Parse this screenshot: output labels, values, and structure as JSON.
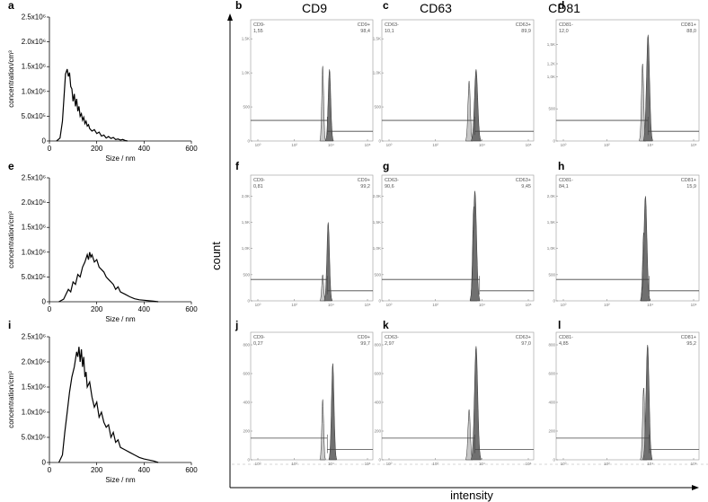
{
  "column_headers": [
    "CD9",
    "CD63",
    "CD81"
  ],
  "axis_labels": {
    "count": "count",
    "intensity": "intensity"
  },
  "chart_data": [
    {
      "panel": "a",
      "type": "line",
      "xlabel": "Size / nm",
      "ylabel": "concentration/cm³",
      "xlim": [
        0,
        600
      ],
      "ylim": [
        0,
        2500000
      ],
      "xticks": [
        "0",
        "200",
        "400",
        "600"
      ],
      "yticks": [
        "0",
        "5.0x10⁵",
        "1.0x10⁶",
        "1.5x10⁶",
        "2.0x10⁶",
        "2.5x10⁶"
      ],
      "x": [
        30,
        45,
        55,
        62,
        68,
        75,
        80,
        85,
        90,
        95,
        100,
        105,
        110,
        115,
        120,
        125,
        130,
        135,
        140,
        145,
        150,
        155,
        160,
        165,
        170,
        180,
        190,
        200,
        210,
        220,
        230,
        240,
        250,
        260,
        270,
        280,
        290,
        300,
        310,
        320,
        330
      ],
      "y": [
        0,
        60000,
        400000,
        900000,
        1350000,
        1450000,
        1300000,
        1380000,
        1100000,
        1050000,
        800000,
        950000,
        700000,
        850000,
        600000,
        700000,
        500000,
        550000,
        420000,
        480000,
        350000,
        400000,
        300000,
        330000,
        250000,
        200000,
        230000,
        150000,
        180000,
        100000,
        120000,
        60000,
        90000,
        50000,
        70000,
        30000,
        40000,
        20000,
        30000,
        10000,
        0
      ]
    },
    {
      "panel": "e",
      "type": "line",
      "xlabel": "Size / nm",
      "ylabel": "concentration/cm³",
      "xlim": [
        0,
        600
      ],
      "ylim": [
        0,
        2500000
      ],
      "xticks": [
        "0",
        "200",
        "400",
        "600"
      ],
      "yticks": [
        "0",
        "5.0x10⁵",
        "1.0x10⁶",
        "1.5x10⁶",
        "2.0x10⁶",
        "2.5x10⁶"
      ],
      "x": [
        40,
        60,
        70,
        80,
        90,
        100,
        110,
        120,
        130,
        140,
        150,
        160,
        165,
        170,
        175,
        180,
        190,
        200,
        210,
        220,
        230,
        240,
        250,
        260,
        270,
        280,
        290,
        300,
        320,
        340,
        360,
        380,
        400,
        420,
        440,
        460
      ],
      "y": [
        0,
        50000,
        150000,
        250000,
        200000,
        400000,
        350000,
        550000,
        500000,
        700000,
        800000,
        950000,
        850000,
        1000000,
        900000,
        950000,
        800000,
        850000,
        700000,
        650000,
        600000,
        500000,
        450000,
        400000,
        350000,
        250000,
        300000,
        200000,
        150000,
        100000,
        60000,
        40000,
        30000,
        20000,
        10000,
        0
      ]
    },
    {
      "panel": "i",
      "type": "line",
      "xlabel": "Size / nm",
      "ylabel": "concentration/cm³",
      "xlim": [
        0,
        600
      ],
      "ylim": [
        0,
        2500000
      ],
      "xticks": [
        "0",
        "200",
        "400",
        "600"
      ],
      "yticks": [
        "0",
        "5.0x10⁵",
        "1.0x10⁶",
        "1.5x10⁶",
        "2.0x10⁶",
        "2.5x10⁶"
      ],
      "x": [
        40,
        55,
        65,
        75,
        85,
        95,
        105,
        115,
        120,
        125,
        130,
        135,
        140,
        145,
        150,
        155,
        160,
        170,
        180,
        190,
        200,
        210,
        220,
        230,
        240,
        250,
        260,
        270,
        280,
        290,
        300,
        320,
        340,
        360,
        380,
        400,
        420,
        440,
        460
      ],
      "y": [
        0,
        150000,
        600000,
        1000000,
        1400000,
        1700000,
        1900000,
        2200000,
        2100000,
        2300000,
        2000000,
        2250000,
        1900000,
        2100000,
        1700000,
        1800000,
        1500000,
        1600000,
        1300000,
        1100000,
        1200000,
        900000,
        1000000,
        800000,
        700000,
        750000,
        500000,
        600000,
        400000,
        450000,
        300000,
        250000,
        200000,
        150000,
        100000,
        70000,
        50000,
        30000,
        0
      ]
    },
    {
      "panel": "b",
      "type": "flow-histogram",
      "marker": "CD9",
      "gate_neg_label": "CD9-",
      "gate_neg_value": "1,55",
      "gate_pos_label": "CD9+",
      "gate_pos_value": "98,4",
      "yticks": [
        "0",
        "500",
        "1,0K",
        "1,5K"
      ],
      "ymax": 1700,
      "neg_peak_log": 3.55,
      "neg_peak": 1100,
      "pos_peak_log": 3.92,
      "pos_peak": 1050
    },
    {
      "panel": "c",
      "type": "flow-histogram",
      "marker": "CD63",
      "gate_neg_label": "CD63-",
      "gate_neg_value": "10,1",
      "gate_pos_label": "CD63+",
      "gate_pos_value": "89,9",
      "yticks": [
        "0",
        "500",
        "1,0K",
        "1,5K"
      ],
      "ymax": 1700,
      "neg_peak_log": 3.45,
      "neg_peak": 880,
      "pos_peak_log": 3.75,
      "pos_peak": 1050
    },
    {
      "panel": "d",
      "type": "flow-histogram",
      "marker": "CD81",
      "gate_neg_label": "CD81-",
      "gate_neg_value": "12,0",
      "gate_pos_label": "CD81+",
      "gate_pos_value": "88,0",
      "yticks": [
        "0",
        "500",
        "1,0K",
        "1,5K",
        "1,2K"
      ],
      "ymax": 1800,
      "neg_peak_log": 3.65,
      "neg_peak": 1200,
      "pos_peak_log": 3.9,
      "pos_peak": 1650
    },
    {
      "panel": "f",
      "type": "flow-histogram",
      "marker": "CD9",
      "gate_neg_label": "CD9-",
      "gate_neg_value": "0,81",
      "gate_pos_label": "CD9+",
      "gate_pos_value": "99,2",
      "yticks": [
        "0",
        "500",
        "1,0K",
        "1,5K",
        "2,0K"
      ],
      "ymax": 2300,
      "neg_peak_log": 3.55,
      "neg_peak": 500,
      "pos_peak_log": 3.85,
      "pos_peak": 1500
    },
    {
      "panel": "g",
      "type": "flow-histogram",
      "marker": "CD63",
      "gate_neg_label": "CD63-",
      "gate_neg_value": "90,6",
      "gate_pos_label": "CD63+",
      "gate_pos_value": "9,45",
      "yticks": [
        "0",
        "500",
        "1,0K",
        "1,5K",
        "2,0K"
      ],
      "ymax": 2300,
      "neg_peak_log": 3.65,
      "neg_peak": 1800,
      "pos_peak_log": 3.7,
      "pos_peak": 2100
    },
    {
      "panel": "h",
      "type": "flow-histogram",
      "marker": "CD81",
      "gate_neg_label": "CD81-",
      "gate_neg_value": "84,1",
      "gate_pos_label": "CD81+",
      "gate_pos_value": "15,9",
      "yticks": [
        "0",
        "500",
        "1,0K",
        "1,5K",
        "2,0K"
      ],
      "ymax": 2300,
      "neg_peak_log": 3.7,
      "neg_peak": 1300,
      "pos_peak_log": 3.78,
      "pos_peak": 2000
    },
    {
      "panel": "j",
      "type": "flow-histogram",
      "marker": "CD9",
      "gate_neg_label": "CD9-",
      "gate_neg_value": "0,27",
      "gate_pos_label": "CD9+",
      "gate_pos_value": "99,7",
      "yticks": [
        "0",
        "200",
        "400",
        "600",
        "800"
      ],
      "ymax": 850,
      "neg_peak_log": 3.55,
      "neg_peak": 420,
      "pos_peak_log": 4.1,
      "pos_peak": 670
    },
    {
      "panel": "k",
      "type": "flow-histogram",
      "marker": "CD63",
      "gate_neg_label": "CD63-",
      "gate_neg_value": "2,97",
      "gate_pos_label": "CD63+",
      "gate_pos_value": "97,0",
      "yticks": [
        "0",
        "200",
        "400",
        "600",
        "800"
      ],
      "ymax": 850,
      "neg_peak_log": 3.45,
      "neg_peak": 350,
      "pos_peak_log": 3.75,
      "pos_peak": 790
    },
    {
      "panel": "l",
      "type": "flow-histogram",
      "marker": "CD81",
      "gate_neg_label": "CD81-",
      "gate_neg_value": "4,85",
      "gate_pos_label": "CD81+",
      "gate_pos_value": "95,2",
      "yticks": [
        "0",
        "200",
        "400",
        "600",
        "800"
      ],
      "ymax": 850,
      "neg_peak_log": 3.7,
      "neg_peak": 500,
      "pos_peak_log": 3.88,
      "pos_peak": 800
    }
  ]
}
